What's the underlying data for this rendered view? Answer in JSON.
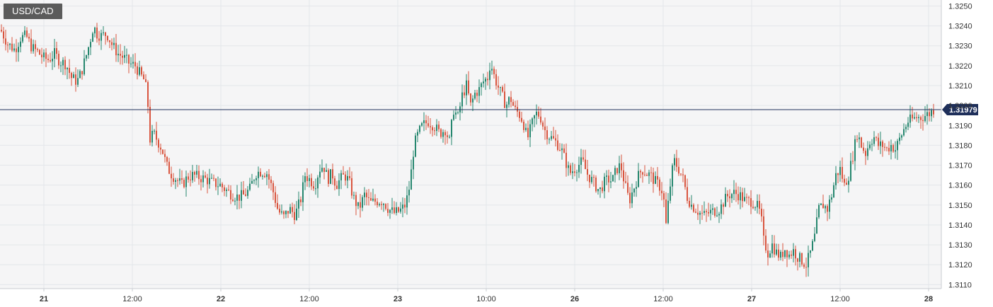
{
  "symbol": "USD/CAD",
  "colors": {
    "up": "#26876f",
    "down": "#d9553f",
    "grid": "#e4e6ea",
    "plot_bg": "#f5f5f6",
    "price_line": "#1e2f5a",
    "price_label_bg": "#1e2f5a",
    "axis_text": "#333333"
  },
  "chart_data": {
    "type": "candlestick",
    "title": "USD/CAD",
    "xlabel": "",
    "ylabel": "",
    "ylim": [
      1.3108,
      1.3253
    ],
    "yticks": [
      "1.3110",
      "1.3120",
      "1.3130",
      "1.3140",
      "1.3150",
      "1.3160",
      "1.3170",
      "1.3180",
      "1.3190",
      "1.3200",
      "1.3210",
      "1.3220",
      "1.3230",
      "1.3240",
      "1.3250"
    ],
    "xticks": [
      {
        "label": "21",
        "bold": true
      },
      {
        "label": "12:00",
        "bold": false
      },
      {
        "label": "22",
        "bold": true
      },
      {
        "label": "12:00",
        "bold": false
      },
      {
        "label": "23",
        "bold": true
      },
      {
        "label": "10:00",
        "bold": false
      },
      {
        "label": "26",
        "bold": true
      },
      {
        "label": "12:00",
        "bold": false
      },
      {
        "label": "27",
        "bold": true
      },
      {
        "label": "12:00",
        "bold": false
      },
      {
        "label": "28",
        "bold": true
      }
    ],
    "current_price": 1.31979,
    "current_price_label": "1.31979",
    "grid": true,
    "series_path": [
      [
        0.0,
        1.3238
      ],
      [
        10,
        1.3231
      ],
      [
        20,
        1.3228
      ],
      [
        28,
        1.3234
      ],
      [
        36,
        1.3235
      ],
      [
        44,
        1.3229
      ],
      [
        52,
        1.3227
      ],
      [
        60,
        1.3224
      ],
      [
        68,
        1.3223
      ],
      [
        76,
        1.3226
      ],
      [
        84,
        1.3222
      ],
      [
        92,
        1.3221
      ],
      [
        100,
        1.3214
      ],
      [
        108,
        1.3212
      ],
      [
        114,
        1.3217
      ],
      [
        120,
        1.3224
      ],
      [
        126,
        1.3232
      ],
      [
        131,
        1.324
      ],
      [
        136,
        1.3236
      ],
      [
        142,
        1.3235
      ],
      [
        150,
        1.3236
      ],
      [
        158,
        1.323
      ],
      [
        166,
        1.3226
      ],
      [
        174,
        1.3224
      ],
      [
        182,
        1.3221
      ],
      [
        190,
        1.322
      ],
      [
        198,
        1.3215
      ],
      [
        204,
        1.3212
      ],
      [
        208,
        1.32
      ],
      [
        211,
        1.3183
      ],
      [
        216,
        1.3186
      ],
      [
        222,
        1.3182
      ],
      [
        228,
        1.3178
      ],
      [
        234,
        1.317
      ],
      [
        240,
        1.3166
      ],
      [
        248,
        1.3163
      ],
      [
        256,
        1.316
      ],
      [
        264,
        1.3164
      ],
      [
        272,
        1.3165
      ],
      [
        280,
        1.3164
      ],
      [
        290,
        1.3163
      ],
      [
        300,
        1.3161
      ],
      [
        310,
        1.316
      ],
      [
        320,
        1.3157
      ],
      [
        328,
        1.3155
      ],
      [
        336,
        1.3154
      ],
      [
        344,
        1.3155
      ],
      [
        352,
        1.3158
      ],
      [
        360,
        1.3166
      ],
      [
        368,
        1.3167
      ],
      [
        376,
        1.3166
      ],
      [
        384,
        1.3158
      ],
      [
        392,
        1.3147
      ],
      [
        400,
        1.3144
      ],
      [
        408,
        1.3148
      ],
      [
        416,
        1.3145
      ],
      [
        424,
        1.3153
      ],
      [
        430,
        1.3165
      ],
      [
        436,
        1.3163
      ],
      [
        444,
        1.316
      ],
      [
        450,
        1.3168
      ],
      [
        456,
        1.317
      ],
      [
        462,
        1.3163
      ],
      [
        468,
        1.3166
      ],
      [
        474,
        1.316
      ],
      [
        480,
        1.3163
      ],
      [
        486,
        1.3165
      ],
      [
        492,
        1.3162
      ],
      [
        498,
        1.3154
      ],
      [
        506,
        1.3148
      ],
      [
        514,
        1.3155
      ],
      [
        522,
        1.3151
      ],
      [
        530,
        1.3152
      ],
      [
        540,
        1.3152
      ],
      [
        548,
        1.3148
      ],
      [
        556,
        1.3146
      ],
      [
        564,
        1.3147
      ],
      [
        572,
        1.315
      ],
      [
        578,
        1.316
      ],
      [
        584,
        1.318
      ],
      [
        590,
        1.3186
      ],
      [
        596,
        1.319
      ],
      [
        604,
        1.3192
      ],
      [
        612,
        1.319
      ],
      [
        620,
        1.3186
      ],
      [
        628,
        1.3188
      ],
      [
        634,
        1.3182
      ],
      [
        640,
        1.3198
      ],
      [
        646,
        1.3194
      ],
      [
        652,
        1.3205
      ],
      [
        658,
        1.321
      ],
      [
        664,
        1.32
      ],
      [
        670,
        1.3206
      ],
      [
        676,
        1.3208
      ],
      [
        682,
        1.3212
      ],
      [
        688,
        1.3214
      ],
      [
        692,
        1.3222
      ],
      [
        696,
        1.3216
      ],
      [
        702,
        1.321
      ],
      [
        708,
        1.3205
      ],
      [
        714,
        1.32
      ],
      [
        720,
        1.3204
      ],
      [
        726,
        1.3198
      ],
      [
        732,
        1.3196
      ],
      [
        738,
        1.3192
      ],
      [
        744,
        1.3183
      ],
      [
        750,
        1.319
      ],
      [
        756,
        1.3196
      ],
      [
        762,
        1.3195
      ],
      [
        768,
        1.3188
      ],
      [
        774,
        1.3185
      ],
      [
        780,
        1.3183
      ],
      [
        786,
        1.3181
      ],
      [
        792,
        1.3178
      ],
      [
        798,
        1.3172
      ],
      [
        804,
        1.3166
      ],
      [
        810,
        1.3168
      ],
      [
        816,
        1.317
      ],
      [
        822,
        1.3172
      ],
      [
        828,
        1.3166
      ],
      [
        834,
        1.3163
      ],
      [
        840,
        1.316
      ],
      [
        846,
        1.3157
      ],
      [
        852,
        1.3161
      ],
      [
        858,
        1.3163
      ],
      [
        864,
        1.3162
      ],
      [
        870,
        1.3168
      ],
      [
        876,
        1.317
      ],
      [
        882,
        1.316
      ],
      [
        888,
        1.3152
      ],
      [
        894,
        1.3158
      ],
      [
        900,
        1.3164
      ],
      [
        906,
        1.3168
      ],
      [
        912,
        1.3166
      ],
      [
        918,
        1.3165
      ],
      [
        924,
        1.3162
      ],
      [
        930,
        1.316
      ],
      [
        936,
        1.3156
      ],
      [
        940,
        1.314
      ],
      [
        944,
        1.3154
      ],
      [
        948,
        1.3166
      ],
      [
        952,
        1.3172
      ],
      [
        958,
        1.3168
      ],
      [
        964,
        1.3163
      ],
      [
        970,
        1.3154
      ],
      [
        976,
        1.315
      ],
      [
        982,
        1.3148
      ],
      [
        988,
        1.3146
      ],
      [
        994,
        1.3145
      ],
      [
        1000,
        1.3146
      ],
      [
        1008,
        1.3147
      ],
      [
        1016,
        1.3148
      ],
      [
        1022,
        1.3152
      ],
      [
        1028,
        1.3155
      ],
      [
        1036,
        1.3156
      ],
      [
        1044,
        1.3155
      ],
      [
        1052,
        1.3152
      ],
      [
        1060,
        1.3152
      ],
      [
        1068,
        1.315
      ],
      [
        1074,
        1.3145
      ],
      [
        1078,
        1.3132
      ],
      [
        1084,
        1.3126
      ],
      [
        1090,
        1.313
      ],
      [
        1096,
        1.3126
      ],
      [
        1102,
        1.3124
      ],
      [
        1108,
        1.3128
      ],
      [
        1114,
        1.3125
      ],
      [
        1120,
        1.3127
      ],
      [
        1126,
        1.3124
      ],
      [
        1132,
        1.3122
      ],
      [
        1138,
        1.312
      ],
      [
        1144,
        1.3126
      ],
      [
        1150,
        1.3134
      ],
      [
        1156,
        1.3148
      ],
      [
        1162,
        1.315
      ],
      [
        1168,
        1.3148
      ],
      [
        1174,
        1.3155
      ],
      [
        1180,
        1.3165
      ],
      [
        1186,
        1.3168
      ],
      [
        1192,
        1.316
      ],
      [
        1198,
        1.3165
      ],
      [
        1204,
        1.3175
      ],
      [
        1210,
        1.3186
      ],
      [
        1216,
        1.318
      ],
      [
        1222,
        1.3176
      ],
      [
        1228,
        1.3182
      ],
      [
        1234,
        1.3184
      ],
      [
        1240,
        1.318
      ],
      [
        1246,
        1.318
      ],
      [
        1252,
        1.3178
      ],
      [
        1258,
        1.318
      ],
      [
        1264,
        1.3178
      ],
      [
        1270,
        1.3183
      ],
      [
        1276,
        1.3188
      ],
      [
        1282,
        1.3192
      ],
      [
        1288,
        1.3193
      ],
      [
        1294,
        1.3194
      ],
      [
        1300,
        1.3194
      ],
      [
        1306,
        1.3195
      ],
      [
        1312,
        1.3196
      ],
      [
        1318,
        1.3198
      ]
    ]
  }
}
